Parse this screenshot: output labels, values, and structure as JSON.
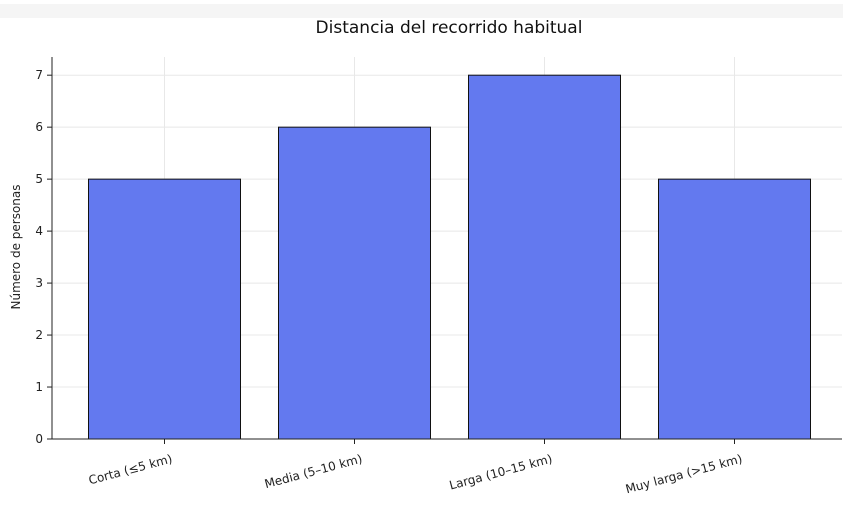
{
  "chart_data": {
    "type": "bar",
    "title": "Distancia del recorrido habitual",
    "xlabel": "",
    "ylabel": "Número de personas",
    "categories": [
      "Corta (≤5 km)",
      "Media (5–10 km)",
      "Larga (10–15 km)",
      "Muy larga (>15 km)"
    ],
    "values": [
      5,
      6,
      7,
      5
    ],
    "ylim": [
      0,
      7.35
    ],
    "yticks": [
      0,
      1,
      2,
      3,
      4,
      5,
      6,
      7
    ],
    "grid": true,
    "bar_color": "#6379ef"
  }
}
